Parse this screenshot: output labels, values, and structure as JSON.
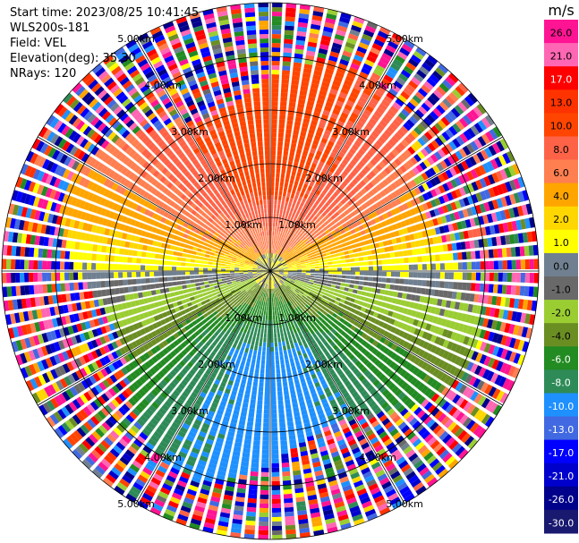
{
  "header": {
    "start_time": "Start time: 2023/08/25 10:41:45",
    "instrument": "WLS200s-181",
    "field": "Field: VEL",
    "elevation": "Elevation(deg): 35.30",
    "nrays": "NRays: 120"
  },
  "colorbar": {
    "unit": "m/s",
    "ticks": [
      "26.0",
      "21.0",
      "17.0",
      "13.0",
      "10.0",
      "8.0",
      "6.0",
      "4.0",
      "2.0",
      "1.0",
      "0.0",
      "-1.0",
      "-2.0",
      "-4.0",
      "-6.0",
      "-8.0",
      "-10.0",
      "-13.0",
      "-17.0",
      "-21.0",
      "-26.0",
      "-30.0"
    ],
    "colors": [
      "#ff1493",
      "#ff66b3",
      "#ff0000",
      "#ff3300",
      "#ff4500",
      "#ff6347",
      "#ff7f50",
      "#ffa500",
      "#ffd700",
      "#ffff00",
      "#708090",
      "#696969",
      "#9acd32",
      "#6b8e23",
      "#228b22",
      "#2e8b57",
      "#1e90ff",
      "#4169e1",
      "#0000ff",
      "#0000cd",
      "#00008b",
      "#191970"
    ]
  },
  "chart_data": {
    "type": "heatmap",
    "projection": "polar-ppi",
    "field": "VEL",
    "units": "m/s",
    "nrays": 120,
    "range_rings_km": [
      1,
      2,
      3,
      4,
      5
    ],
    "max_range_km": 5.0,
    "range_labels": {
      "r1": "1.00km",
      "r2": "2.00km",
      "r3": "3.00km",
      "r4": "4.00km",
      "r5": "5.00km"
    },
    "vmin": -30,
    "vmax": 26,
    "pattern": {
      "dominant_positive_azimuth_deg": 0,
      "dominant_negative_azimuth_deg": 180,
      "max_positive_ms": 9,
      "max_negative_ms": -11,
      "coherent_range_km": 3.6
    }
  }
}
